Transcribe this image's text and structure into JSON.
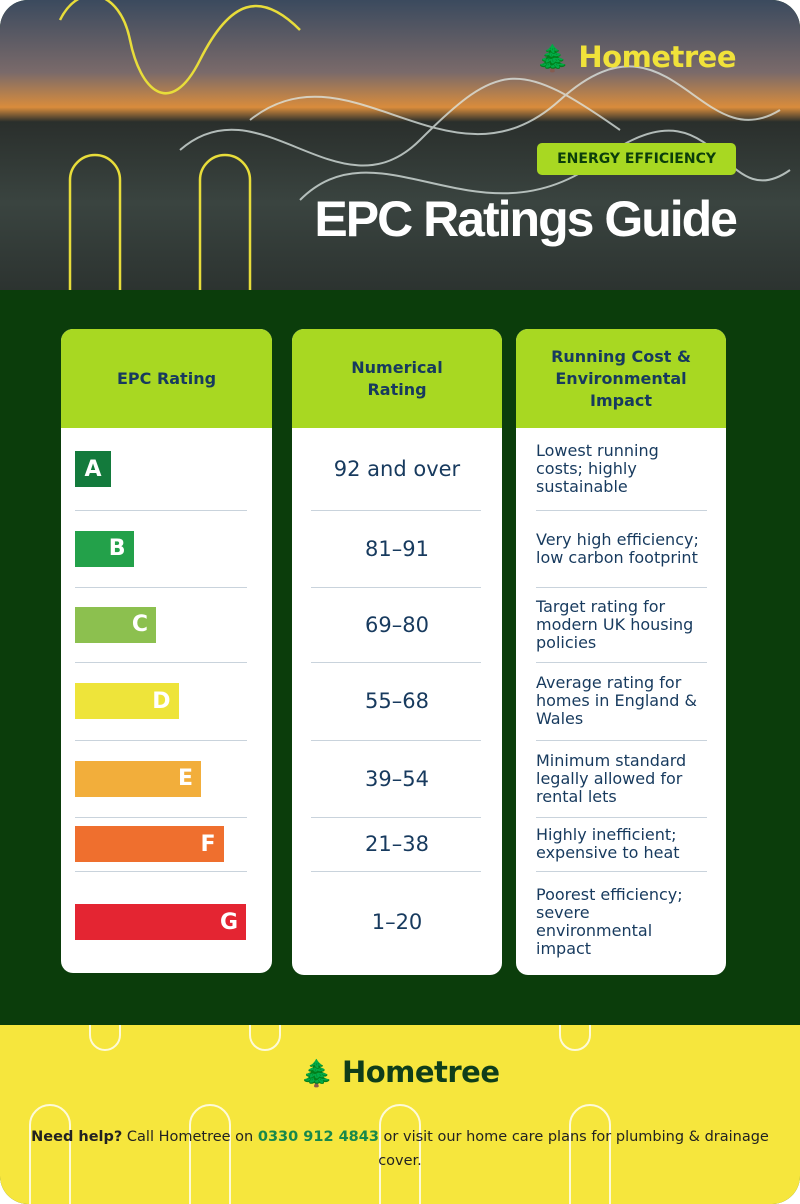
{
  "header": {
    "brand": "Hometree",
    "tag": "ENERGY EFFICIENCY",
    "title": "EPC Ratings Guide"
  },
  "table": {
    "columns": [
      "EPC Rating",
      "Numerical Rating",
      "Running Cost & Environmental Impact"
    ],
    "rows": [
      {
        "rating": "A",
        "color": "#137a3c",
        "numerical": "92 and over",
        "impact": "Lowest running costs; highly sustainable"
      },
      {
        "rating": "B",
        "color": "#23a14a",
        "numerical": "81–91",
        "impact": "Very high efficiency; low carbon footprint"
      },
      {
        "rating": "C",
        "color": "#8cc04f",
        "numerical": "69–80",
        "impact": "Target rating for modern UK housing policies"
      },
      {
        "rating": "D",
        "color": "#eee43a",
        "numerical": "55–68",
        "impact": "Average rating for homes in England & Wales"
      },
      {
        "rating": "E",
        "color": "#f2ae3b",
        "numerical": "39–54",
        "impact": "Minimum standard legally allowed for rental lets"
      },
      {
        "rating": "F",
        "color": "#ef6f2e",
        "numerical": "21–38",
        "impact": "Highly inefficient; expensive to heat"
      },
      {
        "rating": "G",
        "color": "#e42532",
        "numerical": "1–20",
        "impact": "Poorest efficiency; severe environmental impact"
      }
    ]
  },
  "footer": {
    "brand": "Hometree",
    "lead": "Need help?",
    "text1": "Call Hometree on",
    "phone": "0330 912 4843",
    "text2": "or visit our home care plans for plumbing & drainage cover."
  }
}
